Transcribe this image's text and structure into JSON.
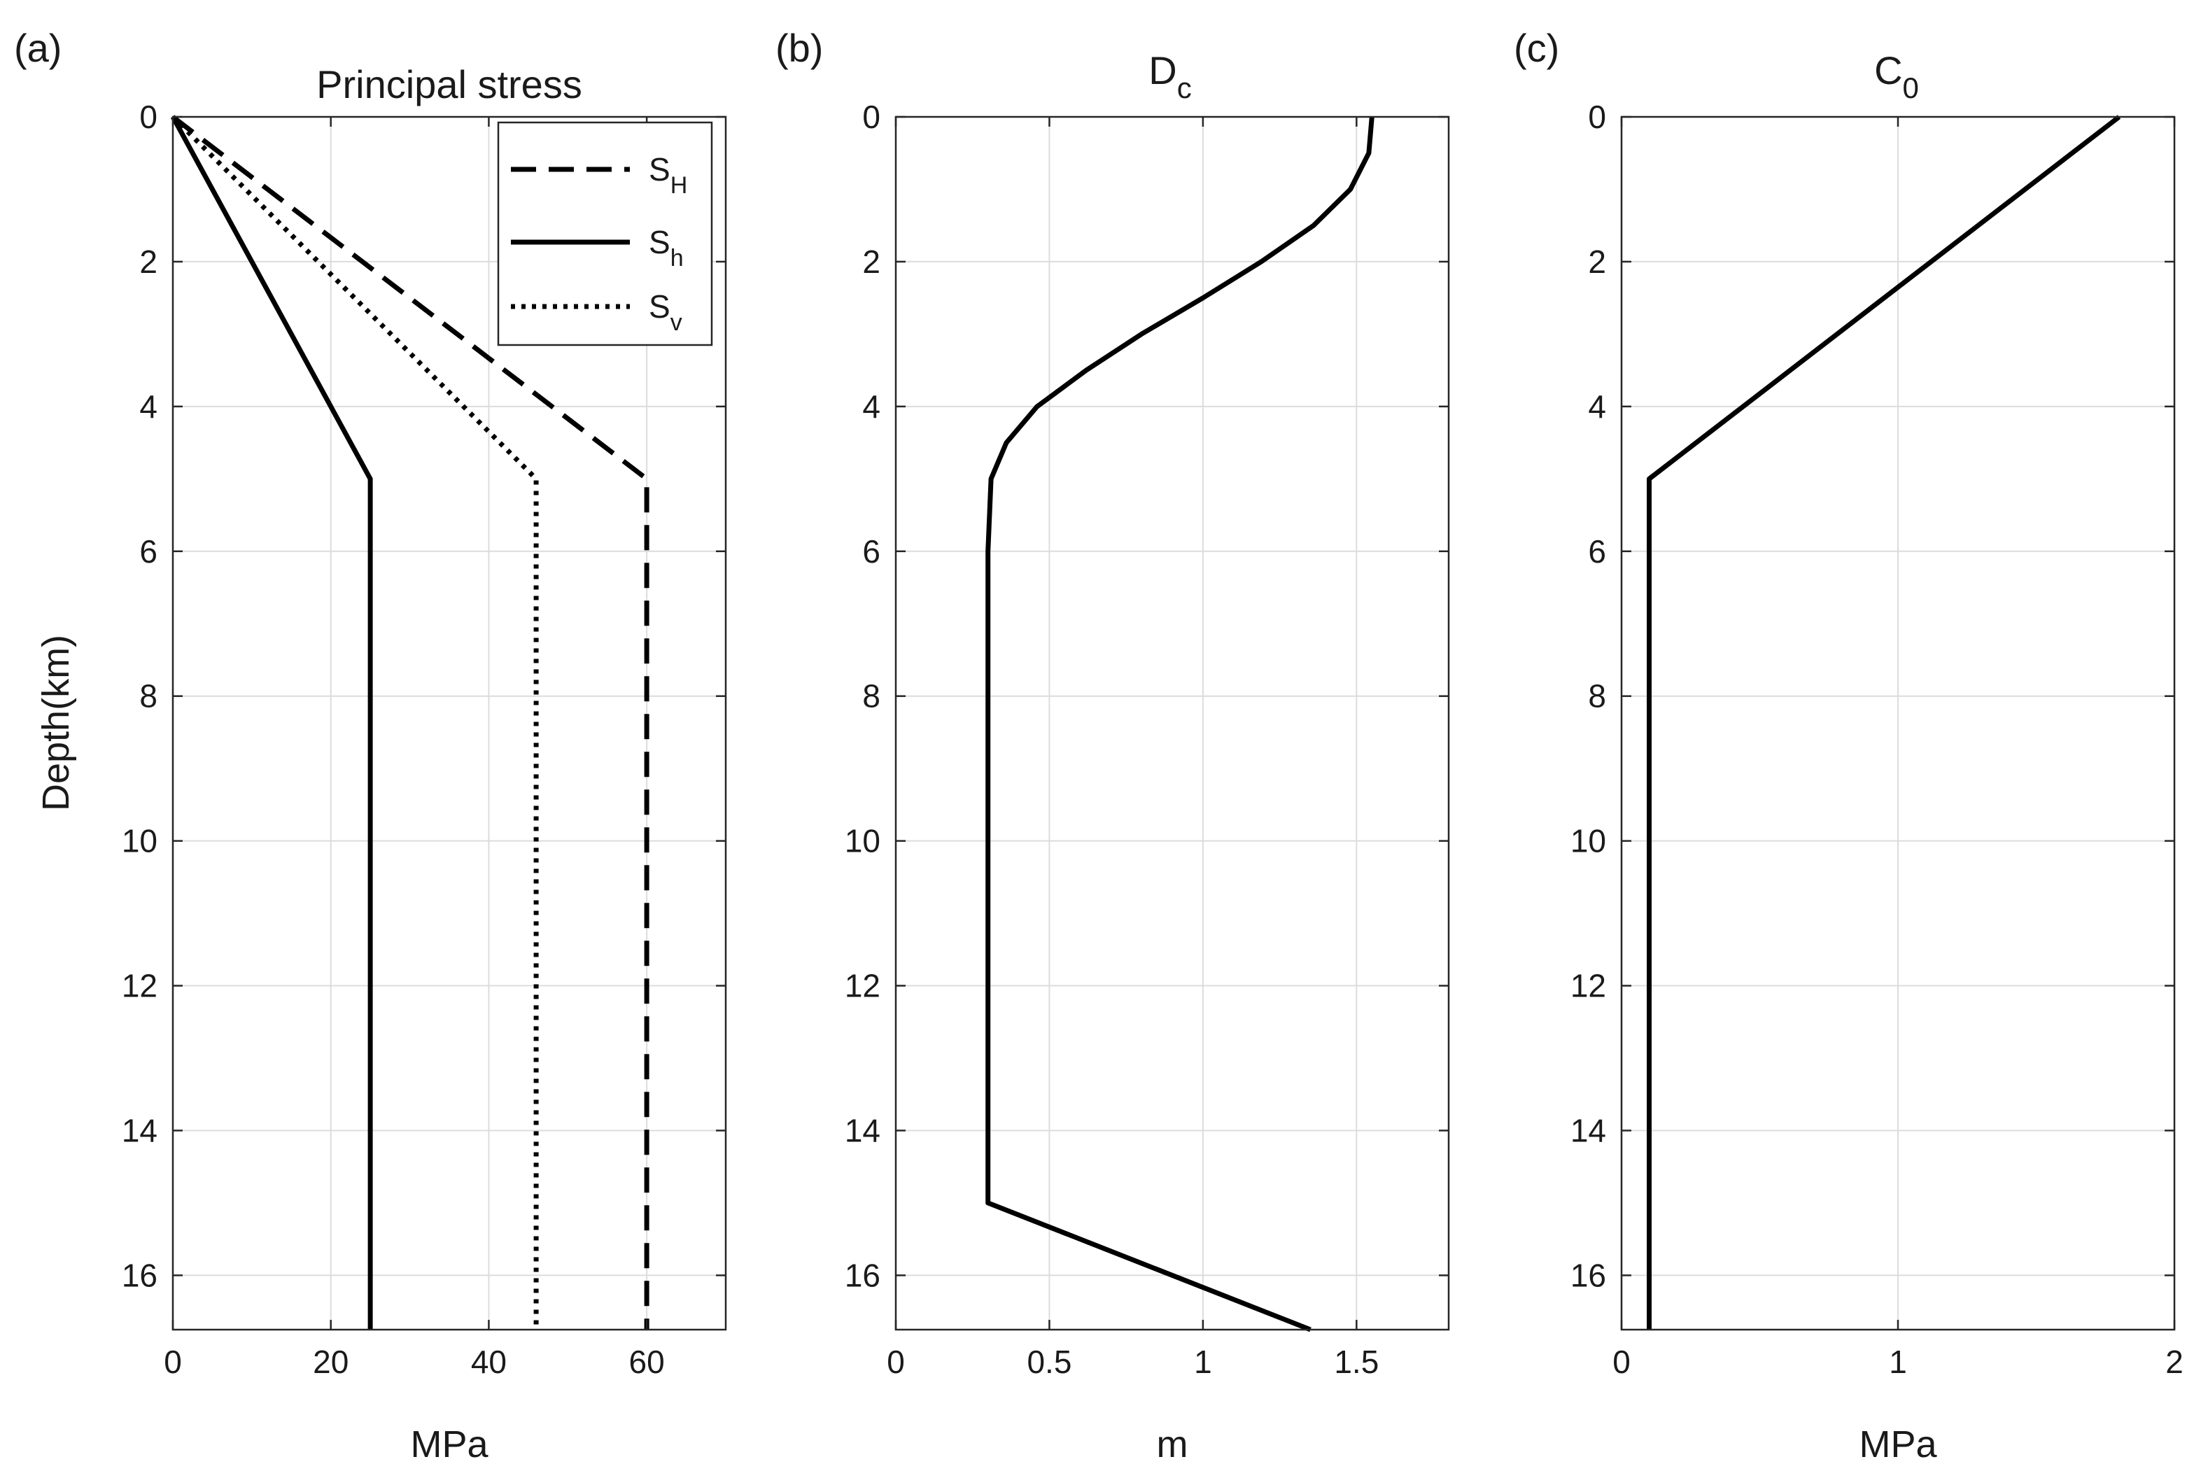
{
  "chart_data": [
    {
      "type": "line",
      "panel_label": "(a)",
      "title": "Principal stress",
      "xlabel": "MPa",
      "ylabel": "Depth(km)",
      "xlim": [
        0,
        70
      ],
      "ylim": [
        0,
        16.75
      ],
      "y_reversed": true,
      "xticks": [
        0,
        20,
        40,
        60
      ],
      "yticks": [
        0,
        2,
        4,
        6,
        8,
        10,
        12,
        14,
        16
      ],
      "grid": true,
      "legend_position": "top-right",
      "series": [
        {
          "name": "S_H",
          "label_main": "S",
          "label_sub": "H",
          "style": "dashed",
          "x": [
            0,
            60,
            60
          ],
          "y": [
            0,
            5,
            16.75
          ]
        },
        {
          "name": "S_h",
          "label_main": "S",
          "label_sub": "h",
          "style": "solid",
          "x": [
            0,
            25,
            25
          ],
          "y": [
            0,
            5,
            16.75
          ]
        },
        {
          "name": "S_v",
          "label_main": "S",
          "label_sub": "v",
          "style": "dotted",
          "x": [
            0,
            46,
            46
          ],
          "y": [
            0,
            5,
            16.75
          ]
        }
      ]
    },
    {
      "type": "line",
      "panel_label": "(b)",
      "title_main": "D",
      "title_sub": "c",
      "xlabel": "m",
      "ylabel": "",
      "xlim": [
        0,
        1.8
      ],
      "ylim": [
        0,
        16.75
      ],
      "y_reversed": true,
      "xticks": [
        0,
        0.5,
        1,
        1.5
      ],
      "xtick_labels": [
        "0",
        "0.5",
        "1",
        "1.5"
      ],
      "yticks": [
        0,
        2,
        4,
        6,
        8,
        10,
        12,
        14,
        16
      ],
      "grid": true,
      "series": [
        {
          "name": "Dc",
          "style": "solid",
          "x": [
            1.55,
            1.54,
            1.48,
            1.36,
            1.19,
            1.0,
            0.8,
            0.62,
            0.46,
            0.36,
            0.31,
            0.3,
            0.3,
            0.3,
            0.3,
            0.3,
            0.3,
            0.3,
            0.3,
            1.35
          ],
          "y": [
            0,
            0.5,
            1.0,
            1.5,
            2.0,
            2.5,
            3.0,
            3.5,
            4.0,
            4.5,
            5.0,
            6,
            8,
            10,
            12,
            14,
            14.5,
            14.8,
            15.0,
            16.75
          ]
        }
      ]
    },
    {
      "type": "line",
      "panel_label": "(c)",
      "title_main": "C",
      "title_sub": "0",
      "xlabel": "MPa",
      "ylabel": "",
      "xlim": [
        0,
        2
      ],
      "ylim": [
        0,
        16.75
      ],
      "y_reversed": true,
      "xticks": [
        0,
        1,
        2
      ],
      "yticks": [
        0,
        2,
        4,
        6,
        8,
        10,
        12,
        14,
        16
      ],
      "grid": true,
      "series": [
        {
          "name": "C0",
          "style": "solid",
          "x": [
            1.8,
            0.1,
            0.1
          ],
          "y": [
            0,
            5,
            16.75
          ]
        }
      ]
    }
  ]
}
